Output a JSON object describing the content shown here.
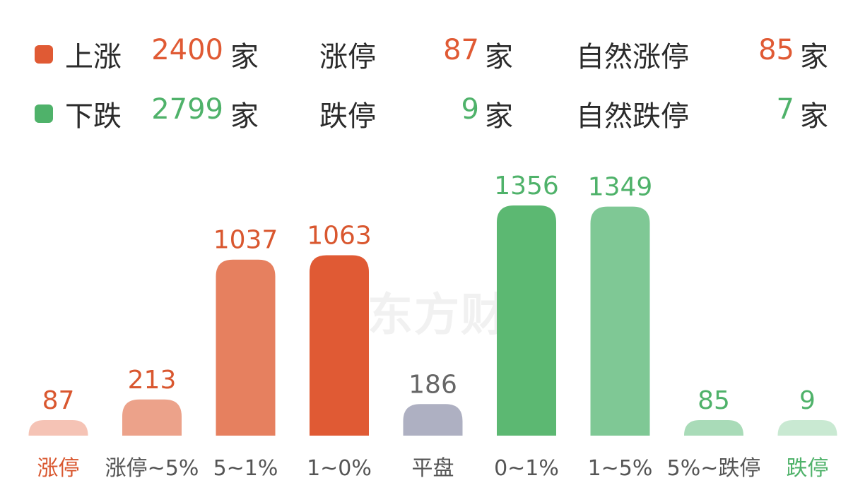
{
  "summary": {
    "up": {
      "label": "上涨",
      "count": "2400",
      "unit": "家",
      "limit_label": "涨停",
      "limit_count": "87",
      "limit_unit": "家",
      "natural_label": "自然涨停",
      "natural_count": "85",
      "natural_unit": "家",
      "color": "#e05a34"
    },
    "down": {
      "label": "下跌",
      "count": "2799",
      "unit": "家",
      "limit_label": "跌停",
      "limit_count": "9",
      "limit_unit": "家",
      "natural_label": "自然跌停",
      "natural_count": "7",
      "natural_unit": "家",
      "color": "#4fb26a"
    }
  },
  "watermark": "东方财",
  "chart_data": {
    "type": "bar",
    "categories": [
      "涨停",
      "涨停~5%",
      "5~1%",
      "1~0%",
      "平盘",
      "0~1%",
      "1~5%",
      "5%~跌停",
      "跌停"
    ],
    "values": [
      87,
      213,
      1037,
      1063,
      186,
      1356,
      1349,
      85,
      9
    ],
    "bar_colors": [
      "#f5c3b5",
      "#eca28a",
      "#e6805f",
      "#e05a34",
      "#aeb0c2",
      "#5cb872",
      "#7fc895",
      "#a9dbb8",
      "#c9e9d2"
    ],
    "value_label_colors": [
      "#d9572f",
      "#d9572f",
      "#d9572f",
      "#d9572f",
      "#666666",
      "#4fb26a",
      "#4fb26a",
      "#4fb26a",
      "#4fb26a"
    ],
    "category_label_colors": [
      "#d9572f",
      "#555555",
      "#555555",
      "#555555",
      "#555555",
      "#555555",
      "#555555",
      "#555555",
      "#4fb26a"
    ],
    "grid": false,
    "legend": "none"
  }
}
